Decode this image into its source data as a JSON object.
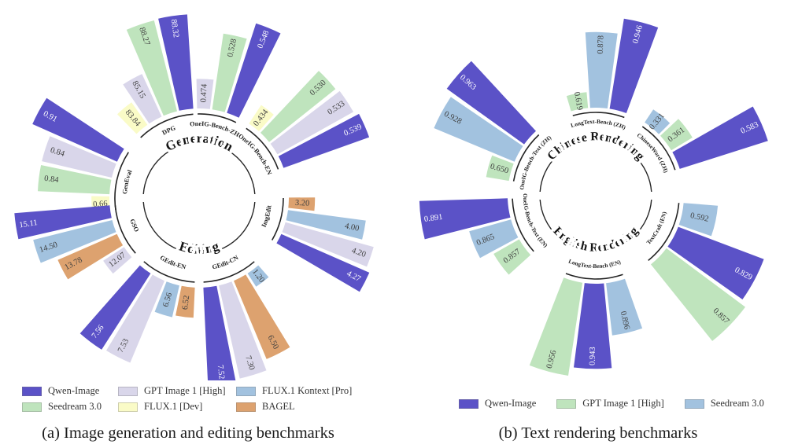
{
  "charts": [
    {
      "id": "a",
      "caption": "(a) Image generation and editing benchmarks",
      "legend": [
        {
          "label": "Qwen-Image",
          "color": "#5b52c7"
        },
        {
          "label": "GPT Image 1 [High]",
          "color": "#d9d6ea"
        },
        {
          "label": "FLUX.1 Kontext [Pro]",
          "color": "#a2c2df"
        },
        {
          "label": "Seedream 3.0",
          "color": "#bfe4bd"
        },
        {
          "label": "FLUX.1 [Dev]",
          "color": "#fafbc7"
        },
        {
          "label": "BAGEL",
          "color": "#dda26f"
        }
      ],
      "chart_data": {
        "type": "radial-bar",
        "legend_position": "bottom",
        "rings": [
          {
            "title": "Generation",
            "position": "top",
            "groups": [
              {
                "label": "GenEval",
                "range": [
                  0.6,
                  0.95
                ],
                "bars": [
                  {
                    "series": "FLUX.1 [Dev]",
                    "value": 0.66,
                    "label": "0.66"
                  },
                  {
                    "series": "Seedream 3.0",
                    "value": 0.84,
                    "label": "0.84"
                  },
                  {
                    "series": "GPT Image 1 [High]",
                    "value": 0.84,
                    "label": "0.84"
                  },
                  {
                    "series": "Qwen-Image",
                    "value": 0.91,
                    "label": "0.91"
                  }
                ]
              },
              {
                "label": "DPG",
                "range": [
                  82,
                  89
                ],
                "bars": [
                  {
                    "series": "FLUX.1 [Dev]",
                    "value": 83.84,
                    "label": "83.84"
                  },
                  {
                    "series": "GPT Image 1 [High]",
                    "value": 85.15,
                    "label": "85.15"
                  },
                  {
                    "series": "Seedream 3.0",
                    "value": 88.27,
                    "label": "88.27"
                  },
                  {
                    "series": "Qwen-Image",
                    "value": 88.32,
                    "label": "88.32"
                  }
                ]
              },
              {
                "label": "OneIG-Bench-ZH",
                "range": [
                  0.44,
                  0.56
                ],
                "bars": [
                  {
                    "series": "GPT Image 1 [High]",
                    "value": 0.474,
                    "label": "0.474"
                  },
                  {
                    "series": "Seedream 3.0",
                    "value": 0.528,
                    "label": "0.528"
                  },
                  {
                    "series": "Qwen-Image",
                    "value": 0.548,
                    "label": "0.548"
                  }
                ]
              },
              {
                "label": "OneIG-Bench-EN",
                "range": [
                  0.4,
                  0.56
                ],
                "bars": [
                  {
                    "series": "FLUX.1 [Dev]",
                    "value": 0.434,
                    "label": "0.434"
                  },
                  {
                    "series": "Seedream 3.0",
                    "value": 0.53,
                    "label": "0.530"
                  },
                  {
                    "series": "GPT Image 1 [High]",
                    "value": 0.533,
                    "label": "0.533"
                  },
                  {
                    "series": "Qwen-Image",
                    "value": 0.539,
                    "label": "0.539"
                  }
                ]
              }
            ]
          },
          {
            "title": "Editing",
            "position": "bottom",
            "groups": [
              {
                "label": "GSO",
                "range": [
                  11,
                  15.5
                ],
                "bars": [
                  {
                    "series": "Qwen-Image",
                    "value": 15.11,
                    "label": "15.11"
                  },
                  {
                    "series": "FLUX.1 Kontext [Pro]",
                    "value": 14.5,
                    "label": "14.50"
                  },
                  {
                    "series": "BAGEL",
                    "value": 13.78,
                    "label": "13.78"
                  },
                  {
                    "series": "GPT Image 1 [High]",
                    "value": 12.07,
                    "label": "12.07"
                  }
                ]
              },
              {
                "label": "GEdit-EN",
                "range": [
                  6,
                  7.8
                ],
                "bars": [
                  {
                    "series": "Qwen-Image",
                    "value": 7.56,
                    "label": "7.56"
                  },
                  {
                    "series": "GPT Image 1 [High]",
                    "value": 7.53,
                    "label": "7.53"
                  },
                  {
                    "series": "FLUX.1 Kontext [Pro]",
                    "value": 6.56,
                    "label": "6.56"
                  },
                  {
                    "series": "BAGEL",
                    "value": 6.52,
                    "label": "6.52"
                  }
                ]
              },
              {
                "label": "GEdit-CN",
                "range": [
                  0,
                  8
                ],
                "bars": [
                  {
                    "series": "Qwen-Image",
                    "value": 7.52,
                    "label": "7.52"
                  },
                  {
                    "series": "GPT Image 1 [High]",
                    "value": 7.3,
                    "label": "7.30"
                  },
                  {
                    "series": "BAGEL",
                    "value": 6.5,
                    "label": "6.50"
                  },
                  {
                    "series": "FLUX.1 Kontext [Pro]",
                    "value": 1.2,
                    "label": "1.20"
                  }
                ]
              },
              {
                "label": "ImgEdit",
                "range": [
                  2.8,
                  4.4
                ],
                "bars": [
                  {
                    "series": "Qwen-Image",
                    "value": 4.27,
                    "label": "4.27"
                  },
                  {
                    "series": "GPT Image 1 [High]",
                    "value": 4.2,
                    "label": "4.20"
                  },
                  {
                    "series": "FLUX.1 Kontext [Pro]",
                    "value": 4.0,
                    "label": "4.00"
                  },
                  {
                    "series": "BAGEL",
                    "value": 3.2,
                    "label": "3.20"
                  }
                ]
              }
            ]
          }
        ]
      }
    },
    {
      "id": "b",
      "caption": "(b) Text rendering benchmarks",
      "legend": [
        {
          "label": "Qwen-Image",
          "color": "#5b52c7"
        },
        {
          "label": "GPT Image 1 [High]",
          "color": "#bfe4bd"
        },
        {
          "label": "Seedream 3.0",
          "color": "#a2c2df"
        }
      ],
      "chart_data": {
        "type": "radial-bar",
        "legend_position": "bottom",
        "rings": [
          {
            "title": "Chinese Rendering",
            "position": "top",
            "groups": [
              {
                "label": "OneIG-Bench-Text (ZH)",
                "range": [
                  0.55,
                  1.0
                ],
                "bars": [
                  {
                    "series": "GPT Image 1 [High]",
                    "value": 0.65,
                    "label": "0.650"
                  },
                  {
                    "series": "Seedream 3.0",
                    "value": 0.928,
                    "label": "0.928"
                  },
                  {
                    "series": "Qwen-Image",
                    "value": 0.963,
                    "label": "0.963"
                  }
                ]
              },
              {
                "label": "LongText-Bench (ZH)",
                "range": [
                  0.55,
                  1.0
                ],
                "bars": [
                  {
                    "series": "GPT Image 1 [High]",
                    "value": 0.619,
                    "label": "0.619"
                  },
                  {
                    "series": "Seedream 3.0",
                    "value": 0.878,
                    "label": "0.878"
                  },
                  {
                    "series": "Qwen-Image",
                    "value": 0.946,
                    "label": "0.946"
                  }
                ]
              },
              {
                "label": "ChineseWord (ZH)",
                "range": [
                  0.28,
                  0.62
                ],
                "bars": [
                  {
                    "series": "Seedream 3.0",
                    "value": 0.331,
                    "label": "0.331"
                  },
                  {
                    "series": "GPT Image 1 [High]",
                    "value": 0.361,
                    "label": "0.361"
                  },
                  {
                    "series": "Qwen-Image",
                    "value": 0.583,
                    "label": "0.583"
                  }
                ]
              }
            ]
          },
          {
            "title": "English Rendering",
            "position": "bottom",
            "groups": [
              {
                "label": "OneIG-Bench-Text (EN)",
                "range": [
                  0.84,
                  0.9
                ],
                "bars": [
                  {
                    "series": "Qwen-Image",
                    "value": 0.891,
                    "label": "0.891"
                  },
                  {
                    "series": "Seedream 3.0",
                    "value": 0.865,
                    "label": "0.865"
                  },
                  {
                    "series": "GPT Image 1 [High]",
                    "value": 0.857,
                    "label": "0.857"
                  }
                ]
              },
              {
                "label": "LongText-Bench (EN)",
                "range": [
                  0.82,
                  0.97
                ],
                "bars": [
                  {
                    "series": "GPT Image 1 [High]",
                    "value": 0.956,
                    "label": "0.956"
                  },
                  {
                    "series": "Qwen-Image",
                    "value": 0.943,
                    "label": "0.943"
                  },
                  {
                    "series": "Seedream 3.0",
                    "value": 0.896,
                    "label": "0.896"
                  }
                ]
              },
              {
                "label": "TextCraft (EN)",
                "range": [
                  0.45,
                  0.88
                ],
                "bars": [
                  {
                    "series": "GPT Image 1 [High]",
                    "value": 0.857,
                    "label": "0.857"
                  },
                  {
                    "series": "Qwen-Image",
                    "value": 0.829,
                    "label": "0.829"
                  },
                  {
                    "series": "Seedream 3.0",
                    "value": 0.592,
                    "label": "0.592"
                  }
                ]
              }
            ]
          }
        ]
      }
    }
  ]
}
